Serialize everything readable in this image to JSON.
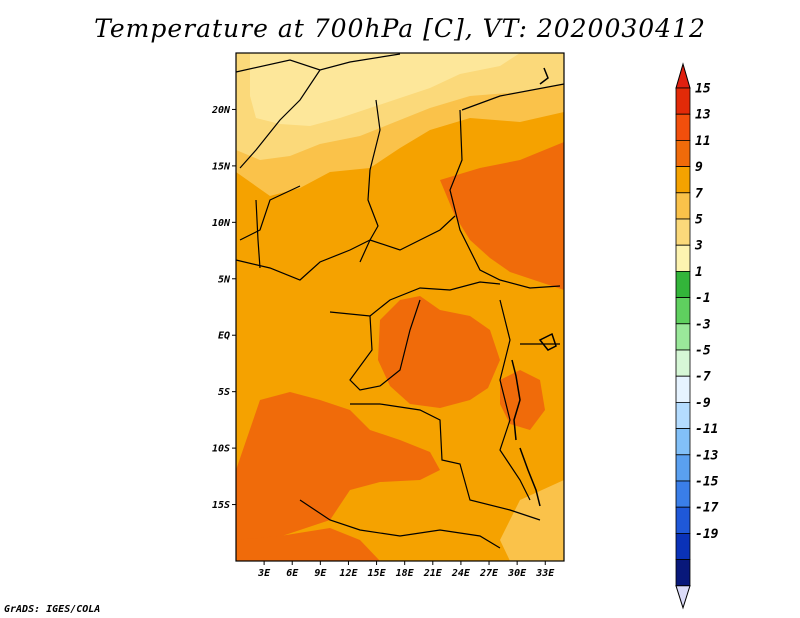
{
  "title": "Temperature at 700hPa [C], VT: 2020030412",
  "credit": "GrADS: IGES/COLA",
  "map": {
    "lon_range": [
      0,
      35
    ],
    "lat_range": [
      -20,
      25
    ],
    "lat_ticks": [
      {
        "value": 20,
        "label": "20N"
      },
      {
        "value": 15,
        "label": "15N"
      },
      {
        "value": 10,
        "label": "10N"
      },
      {
        "value": 5,
        "label": "5N"
      },
      {
        "value": 0,
        "label": "EQ"
      },
      {
        "value": -5,
        "label": "5S"
      },
      {
        "value": -10,
        "label": "10S"
      },
      {
        "value": -15,
        "label": "15S"
      }
    ],
    "lon_ticks": [
      {
        "value": 3,
        "label": "3E"
      },
      {
        "value": 6,
        "label": "6E"
      },
      {
        "value": 9,
        "label": "9E"
      },
      {
        "value": 12,
        "label": "12E"
      },
      {
        "value": 15,
        "label": "15E"
      },
      {
        "value": 18,
        "label": "18E"
      },
      {
        "value": 21,
        "label": "21E"
      },
      {
        "value": 24,
        "label": "24E"
      },
      {
        "value": 27,
        "label": "27E"
      },
      {
        "value": 30,
        "label": "30E"
      },
      {
        "value": 33,
        "label": "33E"
      }
    ],
    "palette": {
      "ocean": "#f5a200",
      "land_warm": "#f5a200",
      "land_hot": "#f06b0a",
      "land_mild": "#fac24a",
      "land_cool": "#fbd97a",
      "land_cooler": "#fde79a",
      "border": "#000000"
    }
  },
  "colorbar": {
    "labels": [
      "15",
      "13",
      "11",
      "9",
      "7",
      "5",
      "3",
      "1",
      "-1",
      "-3",
      "-5",
      "-7",
      "-9",
      "-11",
      "-13",
      "-15",
      "-17",
      "-19"
    ],
    "colors": [
      "#e22a08",
      "#f24f0c",
      "#f06b0a",
      "#f5a200",
      "#fac24a",
      "#fbd97a",
      "#fdf3b0",
      "#33b53a",
      "#5fd05f",
      "#9ae89a",
      "#d6f7d6",
      "#e6f3ff",
      "#b4dcff",
      "#82c0f8",
      "#5aa0f0",
      "#3a7ee8",
      "#1f58d8",
      "#0a32b8",
      "#08187a"
    ],
    "top_cap_color": "#e02010",
    "bottom_cap_color": "#dcdcf8"
  }
}
